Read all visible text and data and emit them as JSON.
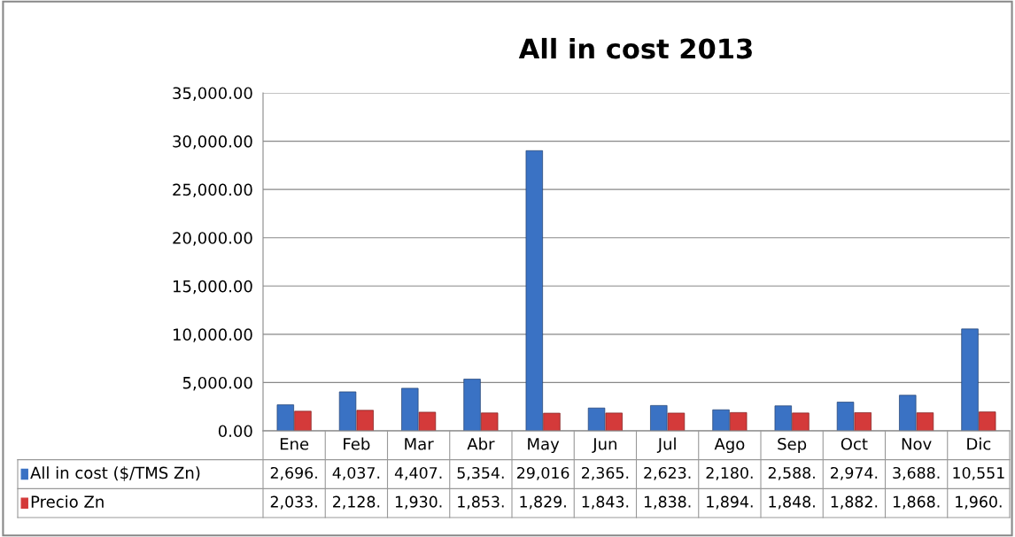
{
  "chart_data": {
    "type": "bar",
    "title": "All in cost 2013",
    "categories": [
      "Ene",
      "Feb",
      "Mar",
      "Abr",
      "May",
      "Jun",
      "Jul",
      "Ago",
      "Sep",
      "Oct",
      "Nov",
      "Dic"
    ],
    "series": [
      {
        "name": "All in cost ($/TMS Zn)",
        "color": "#3a72c4",
        "values": [
          2696,
          4037,
          4407,
          5354,
          29016,
          2365,
          2623,
          2180,
          2588,
          2974,
          3688,
          10551
        ],
        "value_labels": [
          "2,696.",
          "4,037.",
          "4,407.",
          "5,354.",
          "29,016",
          "2,365.",
          "2,623.",
          "2,180.",
          "2,588.",
          "2,974.",
          "3,688.",
          "10,551"
        ]
      },
      {
        "name": "Precio Zn",
        "color": "#d43a3a",
        "values": [
          2033,
          2128,
          1930,
          1853,
          1829,
          1843,
          1838,
          1894,
          1848,
          1882,
          1868,
          1960
        ],
        "value_labels": [
          "2,033.",
          "2,128.",
          "1,930.",
          "1,853.",
          "1,829.",
          "1,843.",
          "1,838.",
          "1,894.",
          "1,848.",
          "1,882.",
          "1,868.",
          "1,960."
        ]
      }
    ],
    "ylim": [
      0,
      35000
    ],
    "yticks": [
      {
        "value": 0,
        "label": "0.00"
      },
      {
        "value": 5000,
        "label": "5,000.00"
      },
      {
        "value": 10000,
        "label": "10,000.00"
      },
      {
        "value": 15000,
        "label": "15,000.00"
      },
      {
        "value": 20000,
        "label": "20,000.00"
      },
      {
        "value": 25000,
        "label": "25,000.00"
      },
      {
        "value": 30000,
        "label": "30,000.00"
      },
      {
        "value": 35000,
        "label": "35,000.00"
      }
    ],
    "grid": "y",
    "legend": "bottom"
  }
}
